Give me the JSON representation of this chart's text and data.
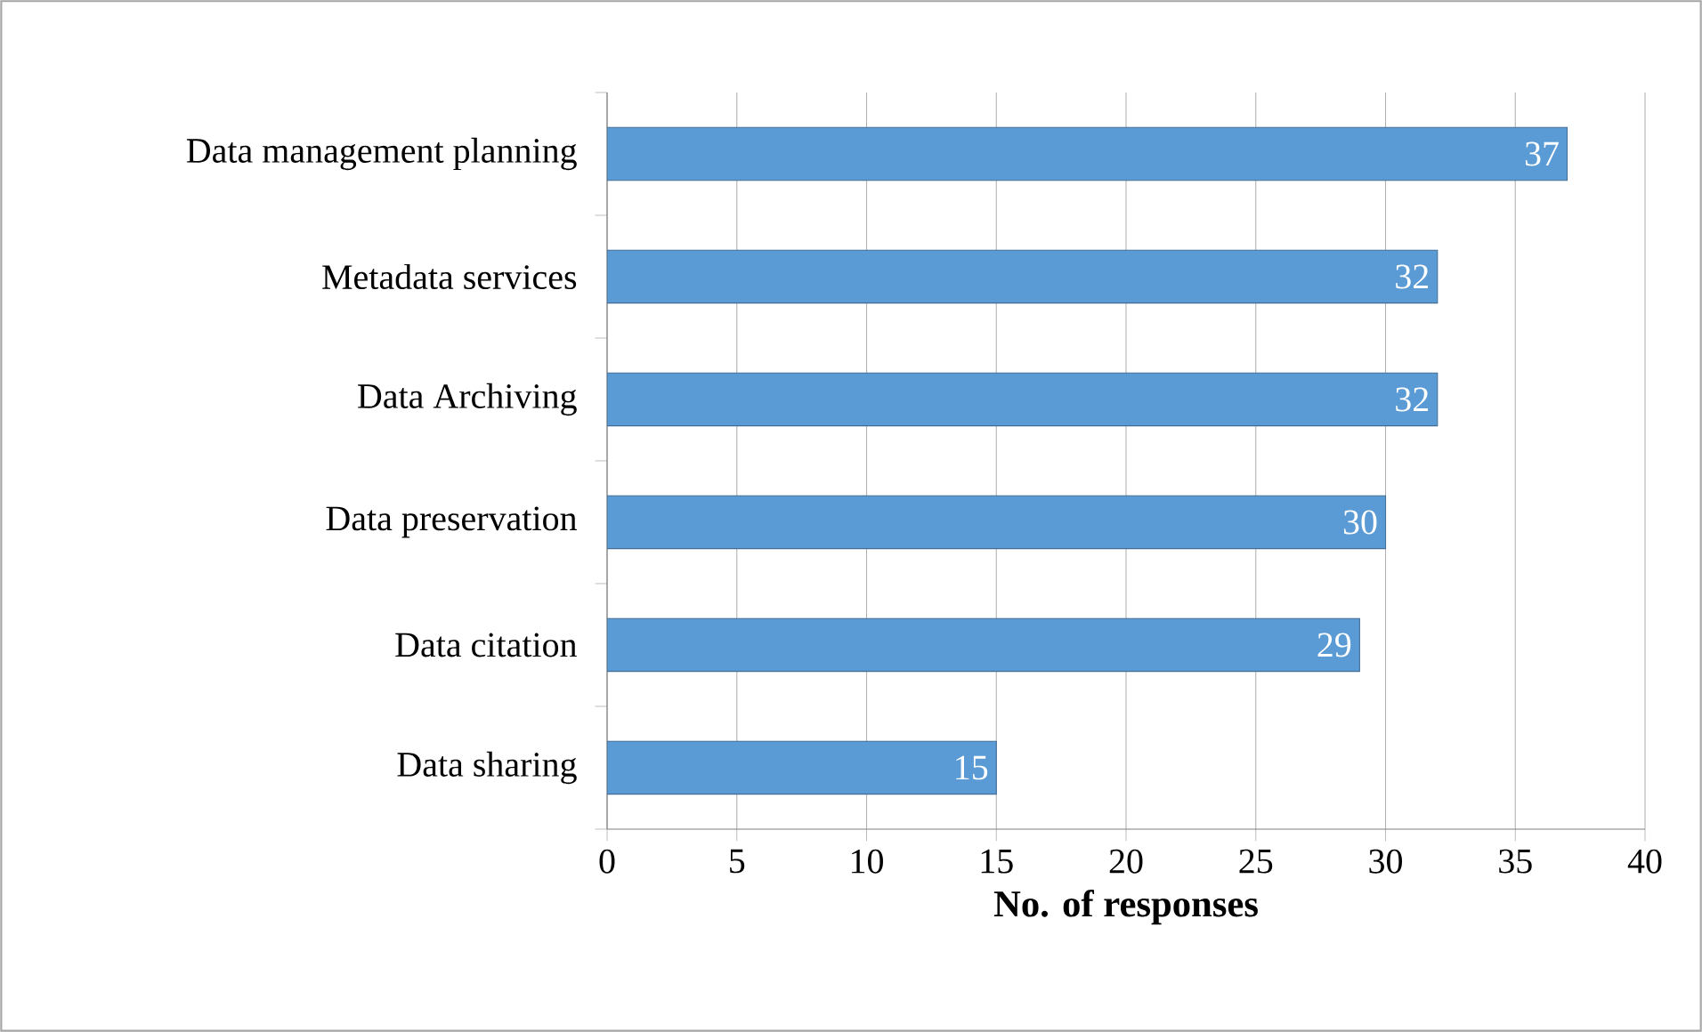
{
  "chart_data": {
    "type": "bar",
    "orientation": "horizontal",
    "xlabel": "No. of responses",
    "categories": [
      "Data management planning",
      "Metadata services",
      "Data Archiving",
      "Data preservation",
      "Data citation",
      "Data sharing"
    ],
    "values": [
      37,
      32,
      32,
      30,
      29,
      15
    ],
    "color": "#5b9bd5",
    "xlim": [
      0,
      40
    ],
    "xticks": [
      0,
      5,
      10,
      15,
      20,
      25,
      30,
      35,
      40
    ],
    "grid": "x",
    "data_labels": true
  }
}
